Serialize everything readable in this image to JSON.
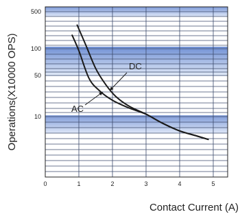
{
  "chart_data": {
    "type": "line",
    "title": "",
    "xlabel": "Contact Current (A)",
    "ylabel": "Operations(X10000 OPS)",
    "x_ticks": [
      "0",
      "1",
      "2",
      "3",
      "4",
      "5"
    ],
    "y_ticks": [
      "500",
      "100",
      "50",
      "10"
    ],
    "y_scale": "log",
    "grid": true,
    "series": [
      {
        "name": "DC",
        "x": [
          0.95,
          1.2,
          1.5,
          1.8,
          2.1,
          2.5,
          3.0,
          3.5,
          4.0,
          4.5,
          4.85
        ],
        "y": [
          280,
          120,
          60,
          35,
          22,
          15,
          11,
          9,
          8,
          7.4,
          7
        ]
      },
      {
        "name": "AC",
        "x": [
          0.8,
          1.0,
          1.3,
          1.6,
          2.0,
          2.5,
          3.0,
          3.5,
          4.0,
          4.5,
          4.85
        ],
        "y": [
          180,
          95,
          45,
          28,
          19,
          14,
          11,
          9,
          8,
          7.4,
          7
        ]
      }
    ]
  }
}
